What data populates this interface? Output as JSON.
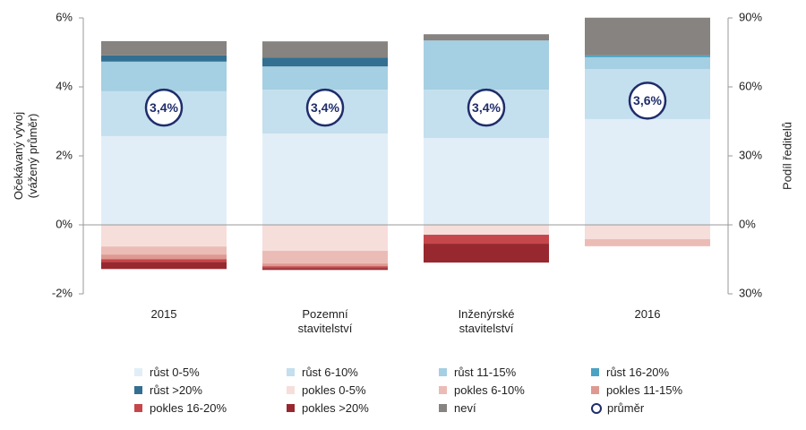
{
  "chart_data": {
    "type": "bar",
    "stacked": true,
    "categories": [
      "2015",
      "Pozemní stavitelství",
      "Inženýrské stavitelství",
      "2016"
    ],
    "ylabel": [
      "Očekávaný vývoj",
      "(vážený průměr)"
    ],
    "y2label": "Podíl ředitelů",
    "ylim": [
      -2,
      6
    ],
    "yticks": [
      {
        "value": -2,
        "label": "-2%"
      },
      {
        "value": 0,
        "label": "0%"
      },
      {
        "value": 2,
        "label": "2%"
      },
      {
        "value": 4,
        "label": "4%"
      },
      {
        "value": 6,
        "label": "6%"
      }
    ],
    "y2lim": [
      -30,
      90
    ],
    "y2ticks": [
      {
        "value": -30,
        "label": "30%"
      },
      {
        "value": 0,
        "label": "0%"
      },
      {
        "value": 30,
        "label": "30%"
      },
      {
        "value": 60,
        "label": "60%"
      },
      {
        "value": 90,
        "label": "90%"
      }
    ],
    "series": [
      {
        "name": "růst 0-5%",
        "color": "#e2eef7",
        "axis": "y2",
        "values": [
          38.6,
          39.7,
          37.8,
          46.0
        ]
      },
      {
        "name": "růst 6-10%",
        "color": "#c4dfee",
        "axis": "y2",
        "values": [
          19.5,
          19.1,
          21.0,
          21.8
        ]
      },
      {
        "name": "růst 11-15%",
        "color": "#a5cfe2",
        "axis": "y2",
        "values": [
          12.9,
          10.1,
          21.4,
          5.1
        ]
      },
      {
        "name": "růst 16-20%",
        "color": "#4ba3c3",
        "axis": "y2",
        "values": [
          0,
          0,
          0,
          0.8
        ]
      },
      {
        "name": "růst >20%",
        "color": "#336f91",
        "axis": "y2",
        "values": [
          2.7,
          3.9,
          0,
          0
        ]
      },
      {
        "name": "pokles 0-5%",
        "color": "#f6dedb",
        "axis": "y2",
        "values": [
          -9.4,
          -11.3,
          -4.3,
          -6.2
        ]
      },
      {
        "name": "pokles 6-10%",
        "color": "#ebbcb6",
        "axis": "y2",
        "values": [
          -3.5,
          -5.5,
          0,
          -3.1
        ]
      },
      {
        "name": "pokles 11-15%",
        "color": "#de9a92",
        "axis": "y2",
        "values": [
          -2.0,
          -1.2,
          0,
          0
        ]
      },
      {
        "name": "pokles 16-20%",
        "color": "#c6474b",
        "axis": "y2",
        "values": [
          -1.2,
          -0.8,
          -3.9,
          0
        ]
      },
      {
        "name": "pokles >20%",
        "color": "#98282f",
        "axis": "y2",
        "values": [
          -3.1,
          -0.8,
          -8.2,
          0
        ]
      },
      {
        "name": "neví",
        "color": "#868380",
        "axis": "y2",
        "values": [
          6.2,
          7.0,
          2.7,
          16.4
        ]
      }
    ],
    "average": {
      "name": "průměr",
      "color": "#1f2d6b",
      "values": [
        3.4,
        3.4,
        3.4,
        3.6
      ],
      "value_labels": [
        "3,4%",
        "3,4%",
        "3,4%",
        "3,6%"
      ]
    }
  }
}
